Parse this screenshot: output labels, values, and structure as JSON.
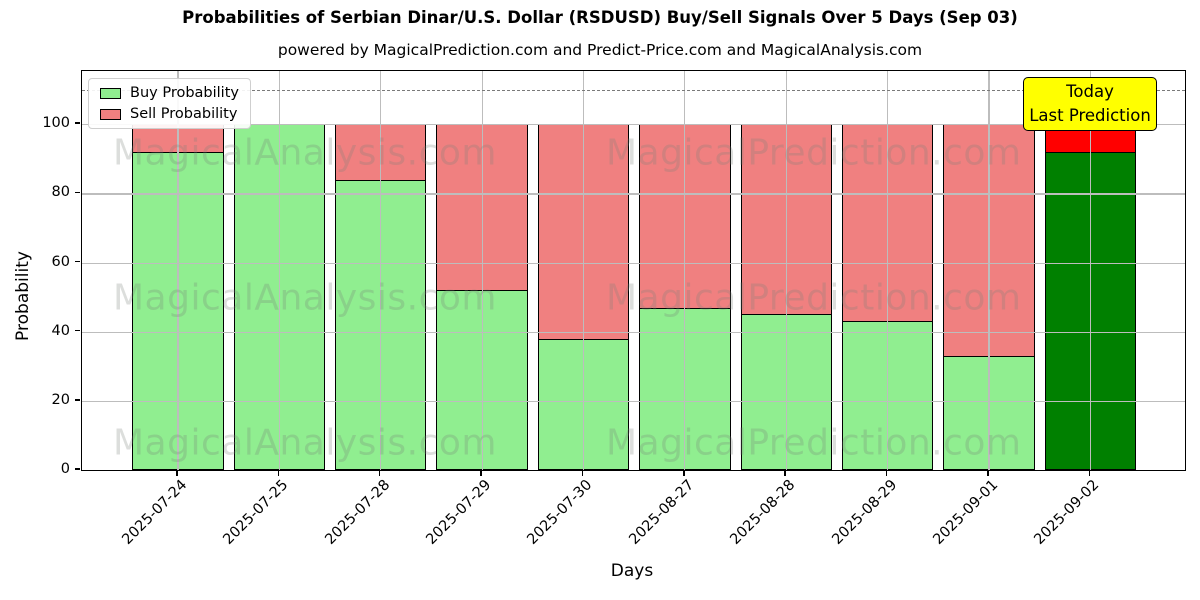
{
  "title": "Probabilities of Serbian Dinar/U.S. Dollar (RSDUSD) Buy/Sell Signals Over 5 Days (Sep 03)",
  "subtitle": "powered by MagicalPrediction.com and Predict-Price.com and MagicalAnalysis.com",
  "watermarks": {
    "left": "MagicalAnalysis.com",
    "right": "MagicalPrediction.com"
  },
  "annotation": {
    "line1": "Today",
    "line2": "Last Prediction",
    "bg": "#FFFF00"
  },
  "chart_data": {
    "type": "bar",
    "stacked": true,
    "title": "Probabilities of Serbian Dinar/U.S. Dollar (RSDUSD) Buy/Sell Signals Over 5 Days (Sep 03)",
    "xlabel": "Days",
    "ylabel": "Probability",
    "categories": [
      "2025-07-24",
      "2025-07-25",
      "2025-07-28",
      "2025-07-29",
      "2025-07-30",
      "2025-08-27",
      "2025-08-28",
      "2025-08-29",
      "2025-09-01",
      "2025-09-02"
    ],
    "series": [
      {
        "name": "Buy Probability",
        "color": "#90EE90",
        "values": [
          92,
          100,
          84,
          52,
          38,
          47,
          45,
          43,
          33,
          92
        ]
      },
      {
        "name": "Sell Probability",
        "color": "#F08080",
        "values": [
          8,
          0,
          16,
          48,
          62,
          53,
          55,
          57,
          67,
          8
        ]
      }
    ],
    "today_index": 9,
    "today_colors": {
      "buy": "#008000",
      "sell": "#FF0000"
    },
    "yticks": [
      0,
      20,
      40,
      60,
      80,
      100
    ],
    "ylim": [
      0,
      115.4
    ],
    "dashed_line_y": 110,
    "grid": true,
    "legend_position": "upper left"
  }
}
